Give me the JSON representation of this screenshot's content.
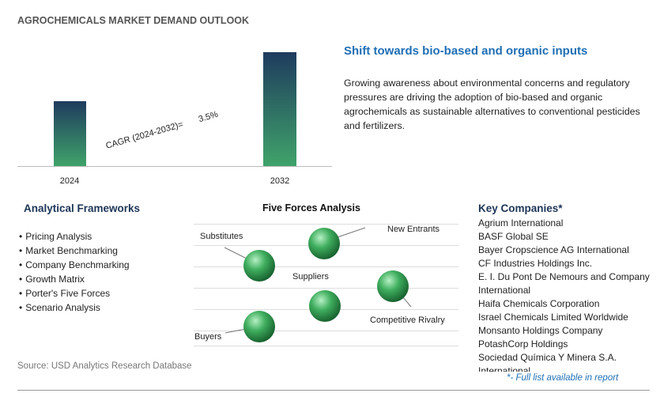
{
  "header": {
    "title": "AGROCHEMICALS MARKET DEMAND OUTLOOK"
  },
  "market_chart": {
    "categories": [
      "2024",
      "2032"
    ],
    "cagr_label": "CAGR (2024-2032)=",
    "cagr_value": "3.5%"
  },
  "highlight": {
    "title": "Shift towards bio-based and organic inputs",
    "body": "Growing awareness about environmental concerns and regulatory pressures are driving the adoption of bio-based and organic agrochemicals as sustainable alternatives to conventional pesticides and fertilizers."
  },
  "frameworks": {
    "title": "Analytical Frameworks",
    "items": [
      "Pricing Analysis",
      "Market Benchmarking",
      "Company Benchmarking",
      "Growth Matrix",
      "Porter's Five Forces",
      "Scenario Analysis"
    ]
  },
  "five_forces": {
    "title": "Five Forces Analysis",
    "substitutes": "Substitutes",
    "new_entrants": "New Entrants",
    "suppliers": "Suppliers",
    "competitive_rivalry": "Competitive Rivalry",
    "buyers": "Buyers"
  },
  "companies": {
    "title": "Key Companies*",
    "items": [
      "Agrium International",
      "BASF Global SE",
      "Bayer Cropscience AG International",
      "CF Industries Holdings Inc.",
      "E. I. Du Pont De Nemours and Company International",
      "Haifa Chemicals Corporation",
      "Israel Chemicals Limited Worldwide",
      "Monsanto Holdings Company",
      "PotashCorp Holdings",
      "Sociedad Química Y Minera S.A. International"
    ],
    "note": "*- Full list available in report"
  },
  "source": "Source: USD Analytics Research Database"
}
